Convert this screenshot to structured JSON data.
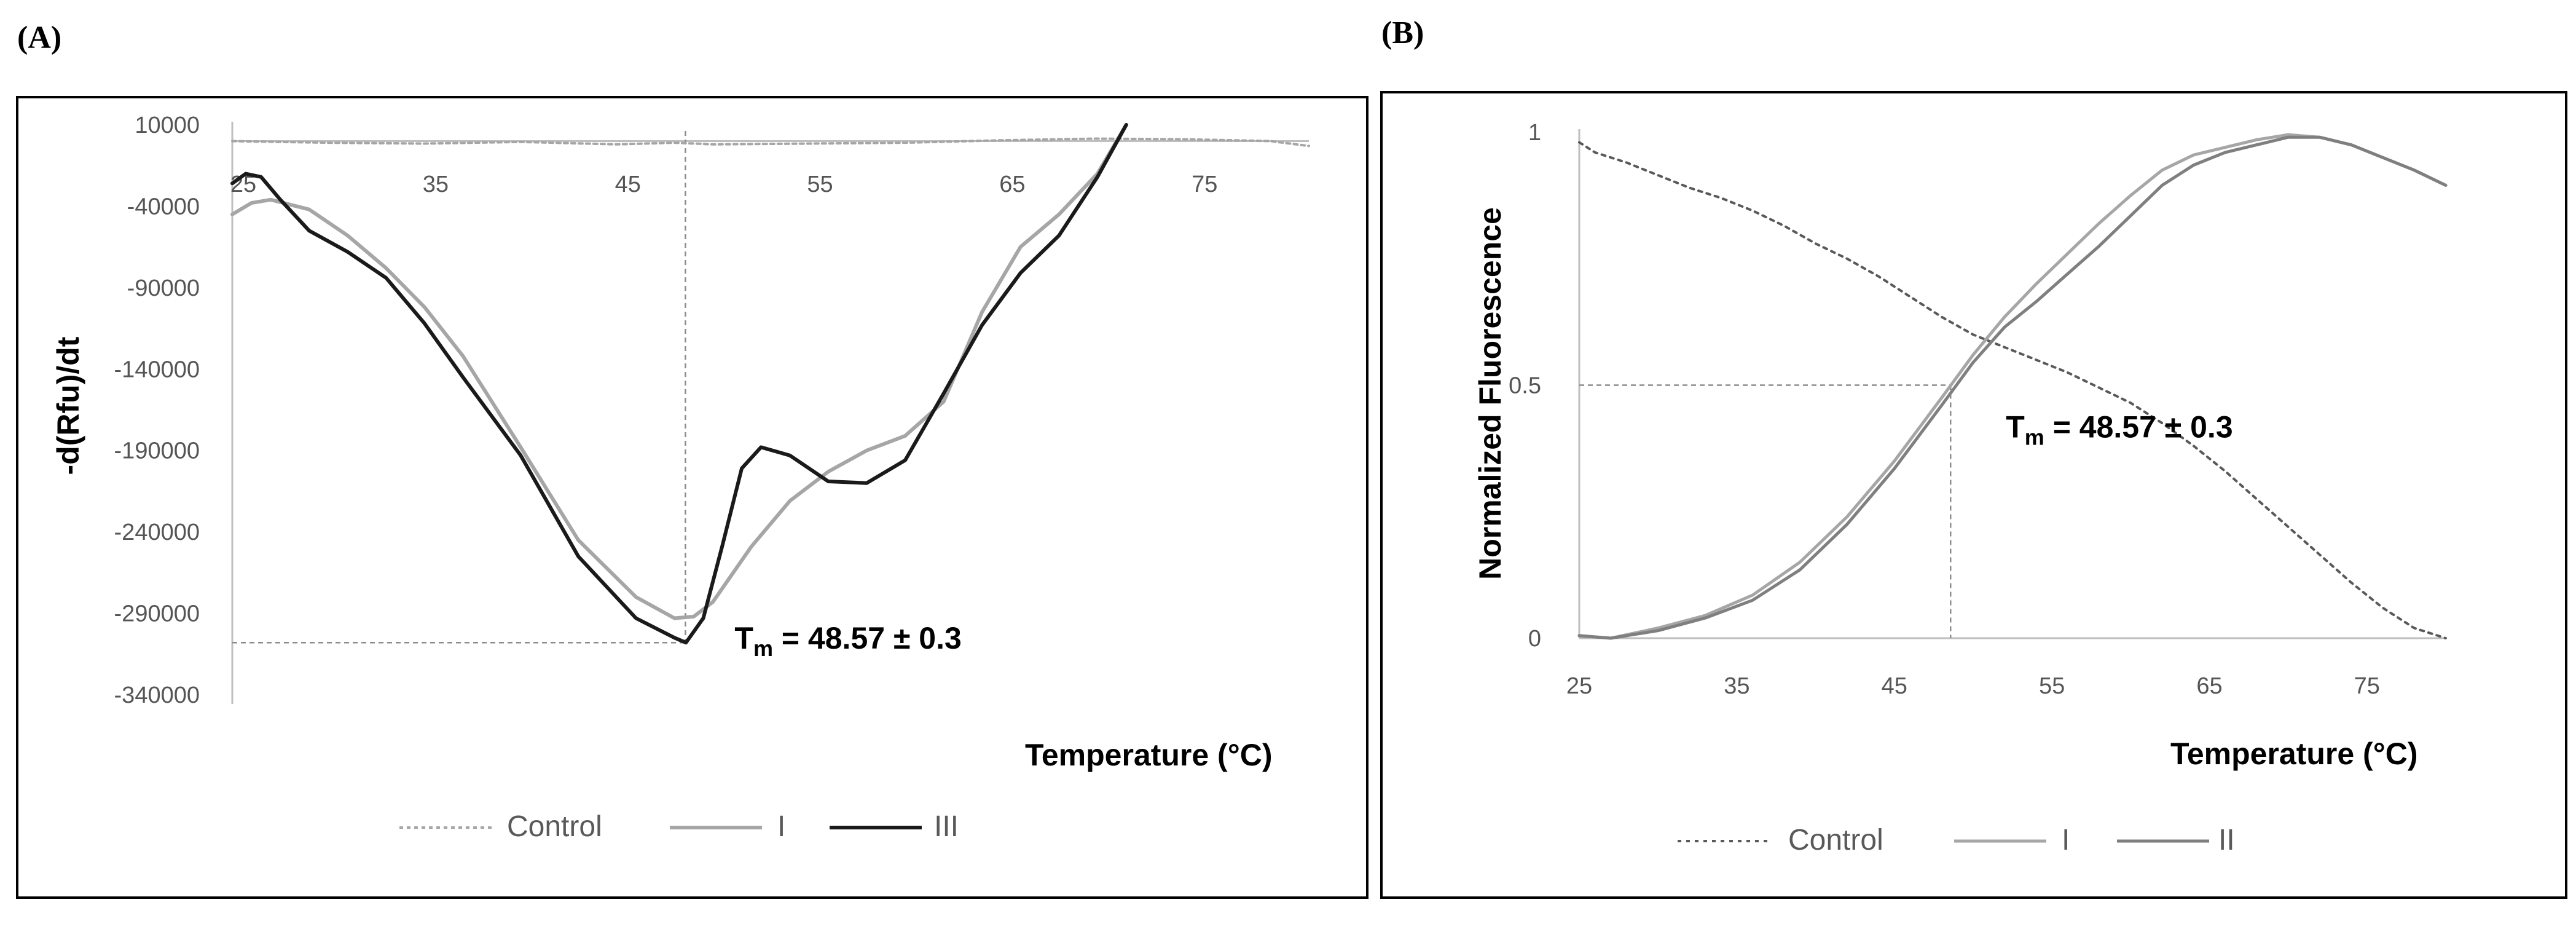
{
  "chart_data": [
    {
      "panel_label": "(A)",
      "type": "line",
      "ylabel": "-d(Rfu)/dt",
      "xlabel": "Temperature (°C)",
      "xlim": [
        25,
        81
      ],
      "ylim": [
        -340000,
        10000
      ],
      "x_ticks": [
        "25",
        "35",
        "45",
        "55",
        "65",
        "75"
      ],
      "y_ticks": [
        "10000",
        "-40000",
        "-90000",
        "-140000",
        "-190000",
        "-240000",
        "-290000",
        "-340000"
      ],
      "annotation": {
        "prefix": "T",
        "sub": "m",
        "text": " = 48.57 ± 0.3",
        "x": 48.57,
        "y": -308000
      },
      "series": [
        {
          "name": "Control",
          "color": "#a6a6a6",
          "dash": "6,6",
          "width": 4,
          "x": [
            25,
            30,
            35,
            40,
            45,
            48,
            50,
            55,
            60,
            65,
            70,
            75,
            79,
            81
          ],
          "y": [
            0,
            -1000,
            -1500,
            -500,
            -2000,
            -1000,
            -2000,
            -1500,
            -1000,
            500,
            1500,
            1000,
            0,
            -3000
          ]
        },
        {
          "name": "I",
          "color": "#a6a6a6",
          "dash": "",
          "width": 6,
          "x": [
            25,
            26,
            27,
            29,
            31,
            33,
            35,
            37,
            40,
            43,
            46,
            48,
            49,
            50,
            52,
            54,
            56,
            58,
            60,
            62,
            64,
            66,
            68,
            70,
            71.5
          ],
          "y": [
            -45000,
            -38000,
            -36000,
            -42000,
            -58000,
            -78000,
            -102000,
            -132000,
            -188000,
            -245000,
            -280000,
            -293000,
            -292000,
            -283000,
            -249000,
            -221000,
            -203000,
            -190000,
            -181000,
            -160000,
            -105000,
            -65000,
            -45000,
            -20000,
            10000
          ]
        },
        {
          "name": "III",
          "color": "#1a1a1a",
          "dash": "",
          "width": 6,
          "x": [
            25,
            25.7,
            26.5,
            27.5,
            29,
            31,
            33,
            35,
            37,
            40,
            43,
            46,
            48,
            48.6,
            49.5,
            50.5,
            51.5,
            52.5,
            54,
            56,
            58,
            60,
            62,
            64,
            66,
            68,
            70,
            71.5
          ],
          "y": [
            -26000,
            -20000,
            -22000,
            -36000,
            -55000,
            -68000,
            -84000,
            -112000,
            -145000,
            -193000,
            -255000,
            -293000,
            -305000,
            -308000,
            -293000,
            -248000,
            -201000,
            -188000,
            -193000,
            -209000,
            -210000,
            -196000,
            -155000,
            -113000,
            -81000,
            -58000,
            -22000,
            10000
          ]
        }
      ]
    },
    {
      "panel_label": "(B)",
      "type": "line",
      "ylabel": "Normalized Fluorescence",
      "xlabel": "Temperature (°C)",
      "xlim": [
        25,
        80
      ],
      "ylim": [
        0,
        1
      ],
      "x_ticks": [
        "25",
        "35",
        "45",
        "55",
        "65",
        "75"
      ],
      "y_ticks": [
        "1",
        "0.5",
        "0"
      ],
      "annotation": {
        "prefix": "T",
        "sub": "m",
        "text": " = 48.57 ± 0.3",
        "x": 48.57,
        "y": 0.5
      },
      "series": [
        {
          "name": "Control",
          "color": "#595959",
          "dash": "6,8",
          "width": 4,
          "x": [
            25,
            26,
            28,
            30,
            32,
            34,
            36,
            38,
            40,
            42,
            44,
            46,
            48,
            50,
            52,
            54,
            56,
            58,
            60,
            62,
            64,
            66,
            68,
            70,
            72,
            74,
            76,
            78,
            80
          ],
          "y": [
            0.98,
            0.96,
            0.94,
            0.915,
            0.89,
            0.87,
            0.845,
            0.815,
            0.78,
            0.75,
            0.715,
            0.675,
            0.635,
            0.6,
            0.575,
            0.55,
            0.525,
            0.495,
            0.465,
            0.425,
            0.38,
            0.33,
            0.275,
            0.22,
            0.165,
            0.11,
            0.06,
            0.02,
            0.0
          ]
        },
        {
          "name": "I",
          "color": "#a6a6a6",
          "dash": "",
          "width": 5,
          "x": [
            25,
            27,
            30,
            33,
            36,
            39,
            42,
            45,
            48,
            50,
            52,
            54,
            56,
            58,
            60,
            62,
            64,
            66,
            68,
            70,
            72,
            74,
            76,
            78,
            80
          ],
          "y": [
            0.005,
            0.0,
            0.02,
            0.045,
            0.085,
            0.15,
            0.24,
            0.35,
            0.475,
            0.56,
            0.635,
            0.7,
            0.76,
            0.82,
            0.875,
            0.925,
            0.955,
            0.97,
            0.985,
            0.995,
            0.99,
            0.975,
            0.95,
            0.925,
            0.895
          ]
        },
        {
          "name": "II",
          "color": "#7f7f7f",
          "dash": "",
          "width": 5,
          "x": [
            25,
            27,
            30,
            33,
            36,
            39,
            42,
            45,
            48,
            50,
            52,
            54,
            56,
            58,
            60,
            62,
            64,
            66,
            68,
            70,
            72,
            74,
            76,
            78,
            80
          ],
          "y": [
            0.005,
            0.0,
            0.015,
            0.04,
            0.075,
            0.135,
            0.225,
            0.335,
            0.46,
            0.545,
            0.615,
            0.665,
            0.72,
            0.775,
            0.835,
            0.895,
            0.935,
            0.96,
            0.975,
            0.99,
            0.99,
            0.975,
            0.95,
            0.925,
            0.895
          ]
        }
      ]
    }
  ]
}
